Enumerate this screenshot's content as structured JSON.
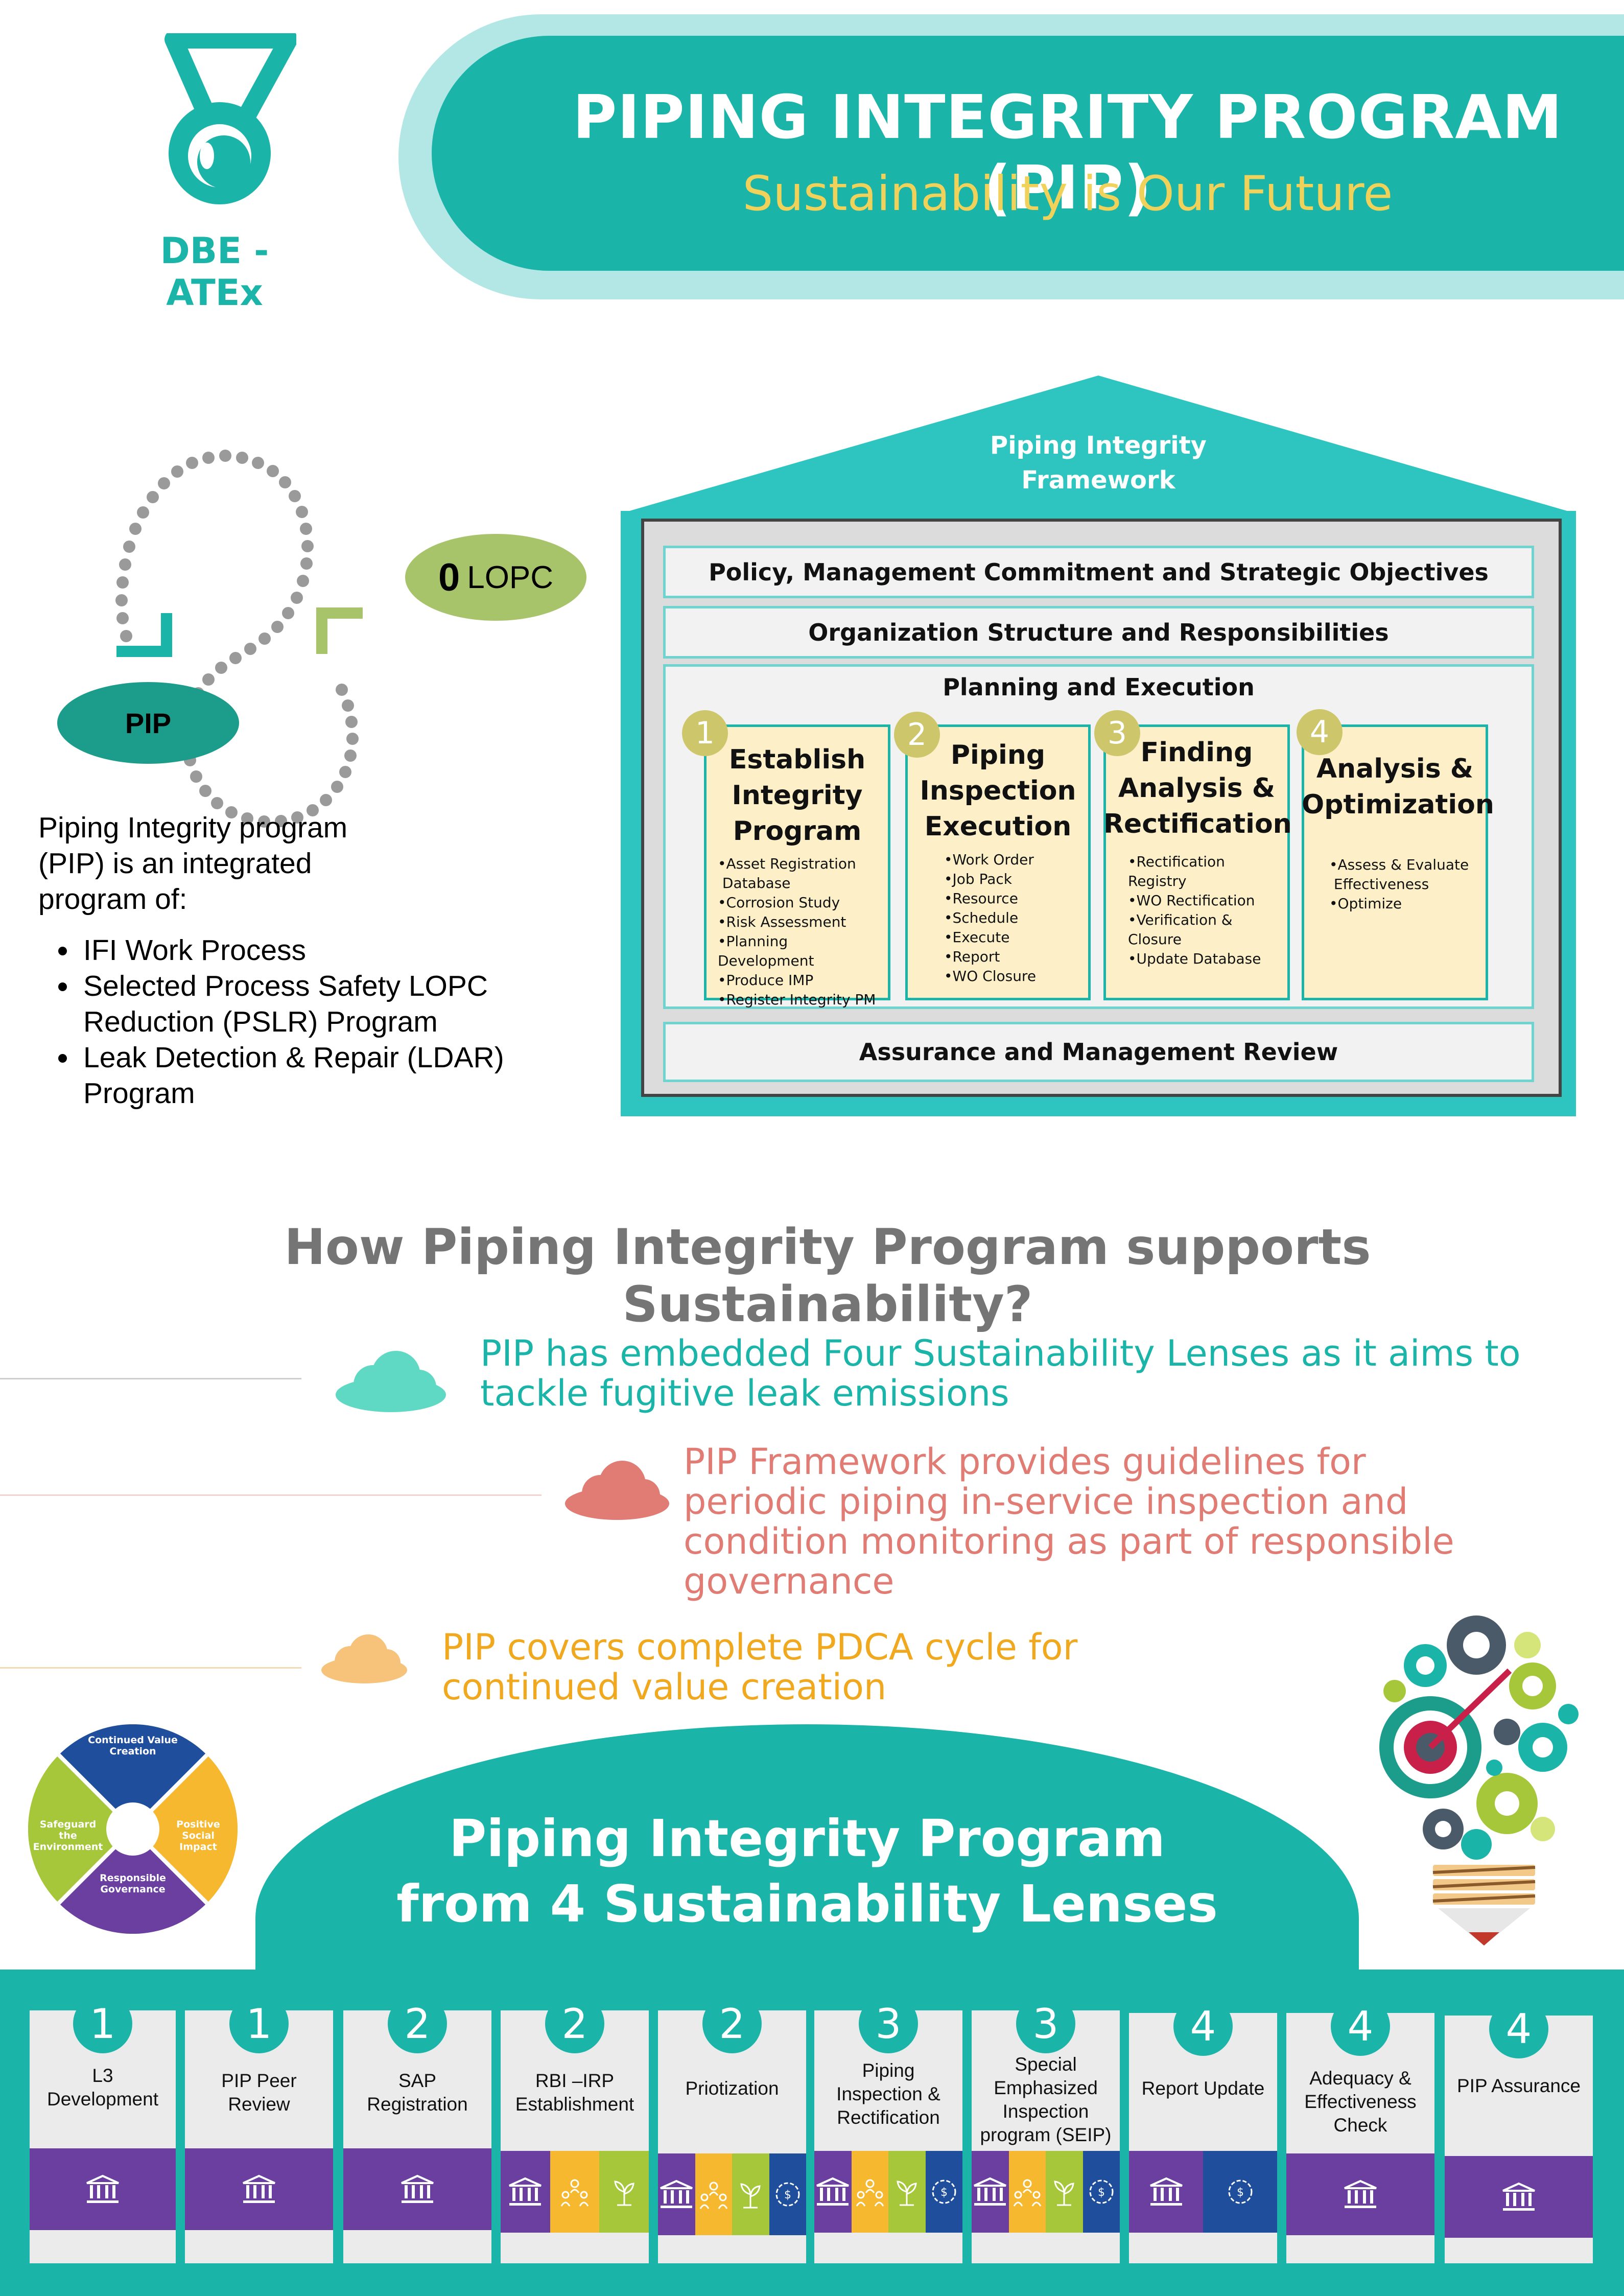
{
  "header": {
    "title": "PIPING INTEGRITY PROGRAM (PIP)",
    "subtitle": "Sustainability is Our Future",
    "logo_text": "DBE - ATEx"
  },
  "cycle": {
    "pip_label": "PIP",
    "lopc_number": "0",
    "lopc_text": "LOPC"
  },
  "intro": {
    "text": "Piping Integrity program (PIP) is an integrated program of:",
    "bullets": [
      "IFI Work Process",
      "Selected Process Safety LOPC Reduction (PSLR) Program",
      "Leak Detection & Repair (LDAR) Program"
    ]
  },
  "framework": {
    "roof_title_line1": "Piping Integrity",
    "roof_title_line2": "Framework",
    "bar1": "Policy, Management Commitment and Strategic Objectives",
    "bar2": "Organization Structure and Responsibilities",
    "planning_title": "Planning and Execution",
    "bar_bottom": "Assurance and Management Review",
    "columns": [
      {
        "num": "1",
        "title": "Establish Integrity Program",
        "items": [
          "•Asset Registration",
          " Database",
          "•Corrosion Study",
          "•Risk Assessment",
          "•Planning Development",
          "•Produce IMP",
          "•Register Integrity PM"
        ]
      },
      {
        "num": "2",
        "title": "Piping Inspection Execution",
        "items": [
          "•Work Order",
          "•Job Pack",
          "•Resource",
          "•Schedule",
          "•Execute",
          "•Report",
          "•WO Closure"
        ]
      },
      {
        "num": "3",
        "title": "Finding Analysis & Rectification",
        "items": [
          "•Rectification Registry",
          "•WO Rectification",
          "•Verification & Closure",
          "•Update Database"
        ]
      },
      {
        "num": "4",
        "title": "Analysis & Optimization",
        "items": [
          "•Assess & Evaluate",
          " Effectiveness",
          "•Optimize"
        ]
      }
    ]
  },
  "sustainability": {
    "heading": "How Piping Integrity Program supports Sustainability?",
    "statements": [
      {
        "text": "PIP has embedded Four Sustainability Lenses as it aims to tackle fugitive leak emissions",
        "color": "#1ab4a8"
      },
      {
        "text": "PIP Framework provides guidelines for periodic piping in-service inspection and condition monitoring as part of responsible governance",
        "color": "#e07c74"
      },
      {
        "text": "PIP covers complete PDCA cycle for continued value creation",
        "color": "#f0a81e"
      }
    ],
    "wheel": {
      "top": "Continued Value Creation",
      "right": "Positive Social Impact",
      "bottom": "Responsible Governance",
      "left": "Safeguard the Environment"
    }
  },
  "lenses": {
    "title_line1": "Piping Integrity Program",
    "title_line2": "from 4 Sustainability Lenses",
    "colors": {
      "governance": "#6b3fa0",
      "social": "#f5b82e",
      "environment": "#a6c73a",
      "value": "#1f4e9c"
    },
    "cards": [
      {
        "num": "1",
        "label": "L3 Development"
      },
      {
        "num": "1",
        "label": "PIP Peer Review"
      },
      {
        "num": "2",
        "label": "SAP Registration"
      },
      {
        "num": "2",
        "label": "RBI –IRP Establishment"
      },
      {
        "num": "2",
        "label": "Priotization"
      },
      {
        "num": "3",
        "label": "Piping Inspection & Rectification"
      },
      {
        "num": "3",
        "label": "Special Emphasized Inspection program (SEIP)"
      },
      {
        "num": "4",
        "label": "Report Update"
      },
      {
        "num": "4",
        "label": "Adequacy & Effectiveness Check"
      },
      {
        "num": "4",
        "label": "PIP Assurance"
      }
    ]
  }
}
